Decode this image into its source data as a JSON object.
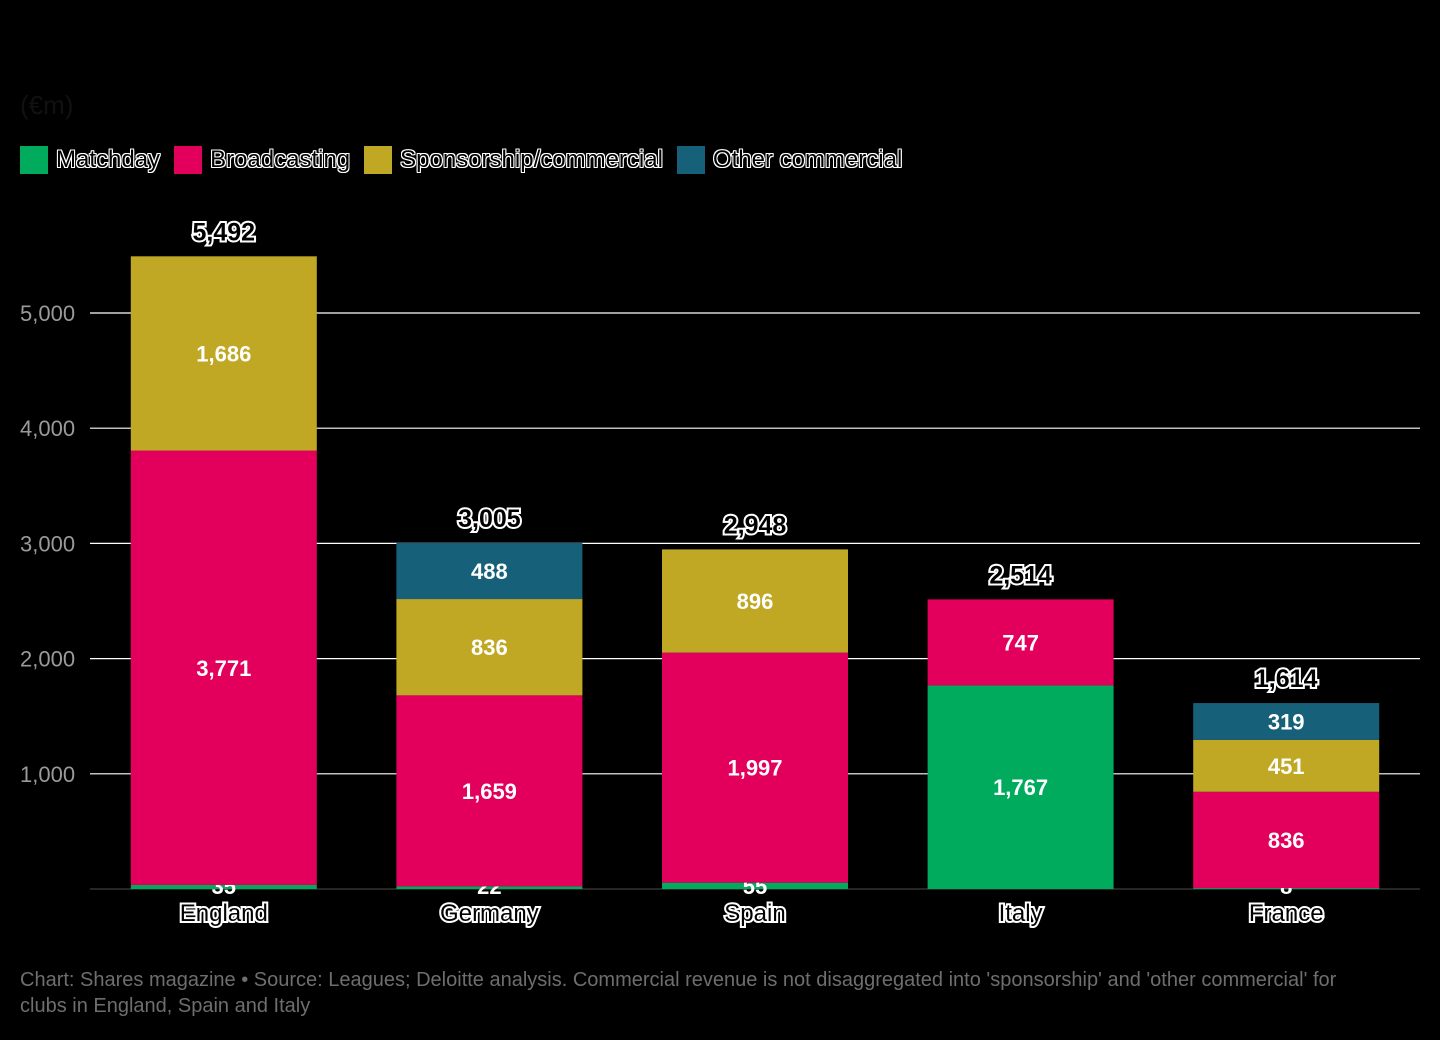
{
  "chart_data": {
    "type": "bar",
    "stacked": true,
    "unit_label": "(€m)",
    "categories": [
      "England",
      "Germany",
      "Spain",
      "Italy",
      "France"
    ],
    "series": [
      {
        "name": "Matchday",
        "color": "#00ab5e",
        "values": [
          35,
          22,
          55,
          1767,
          8
        ],
        "labels": [
          "35",
          "22",
          "55",
          "1,767",
          "8"
        ]
      },
      {
        "name": "Broadcasting",
        "color": "#e3005c",
        "values": [
          3771,
          1659,
          1997,
          747,
          836
        ],
        "labels": [
          "3,771",
          "1,659",
          "1,997",
          "747",
          "836"
        ]
      },
      {
        "name": "Sponsorship/commercial",
        "color": "#c0a825",
        "values": [
          1686,
          836,
          896,
          0,
          451
        ],
        "labels": [
          "1,686",
          "836",
          "896",
          "",
          "451"
        ]
      },
      {
        "name": "Other commercial",
        "color": "#17607a",
        "values": [
          0,
          488,
          0,
          0,
          319
        ],
        "labels": [
          "",
          "488",
          "",
          "",
          "319"
        ]
      }
    ],
    "totals": [
      "5,492",
      "3,005",
      "2,948",
      "2,514",
      "1,614"
    ],
    "total_values": [
      5492,
      3005,
      2948,
      2514,
      1614
    ],
    "ylim": [
      0,
      5492
    ],
    "yticks": [
      1000,
      2000,
      3000,
      4000,
      5000
    ],
    "ytick_labels": [
      "1,000",
      "2,000",
      "3,000",
      "4,000",
      "5,000"
    ],
    "grid": true,
    "legend_position": "top-left",
    "footer": "Chart: Shares magazine • Source: Leagues; Deloitte analysis. Commercial revenue is not disaggregated into 'sponsorship' and 'other commercial' for clubs in England, Spain and Italy"
  }
}
